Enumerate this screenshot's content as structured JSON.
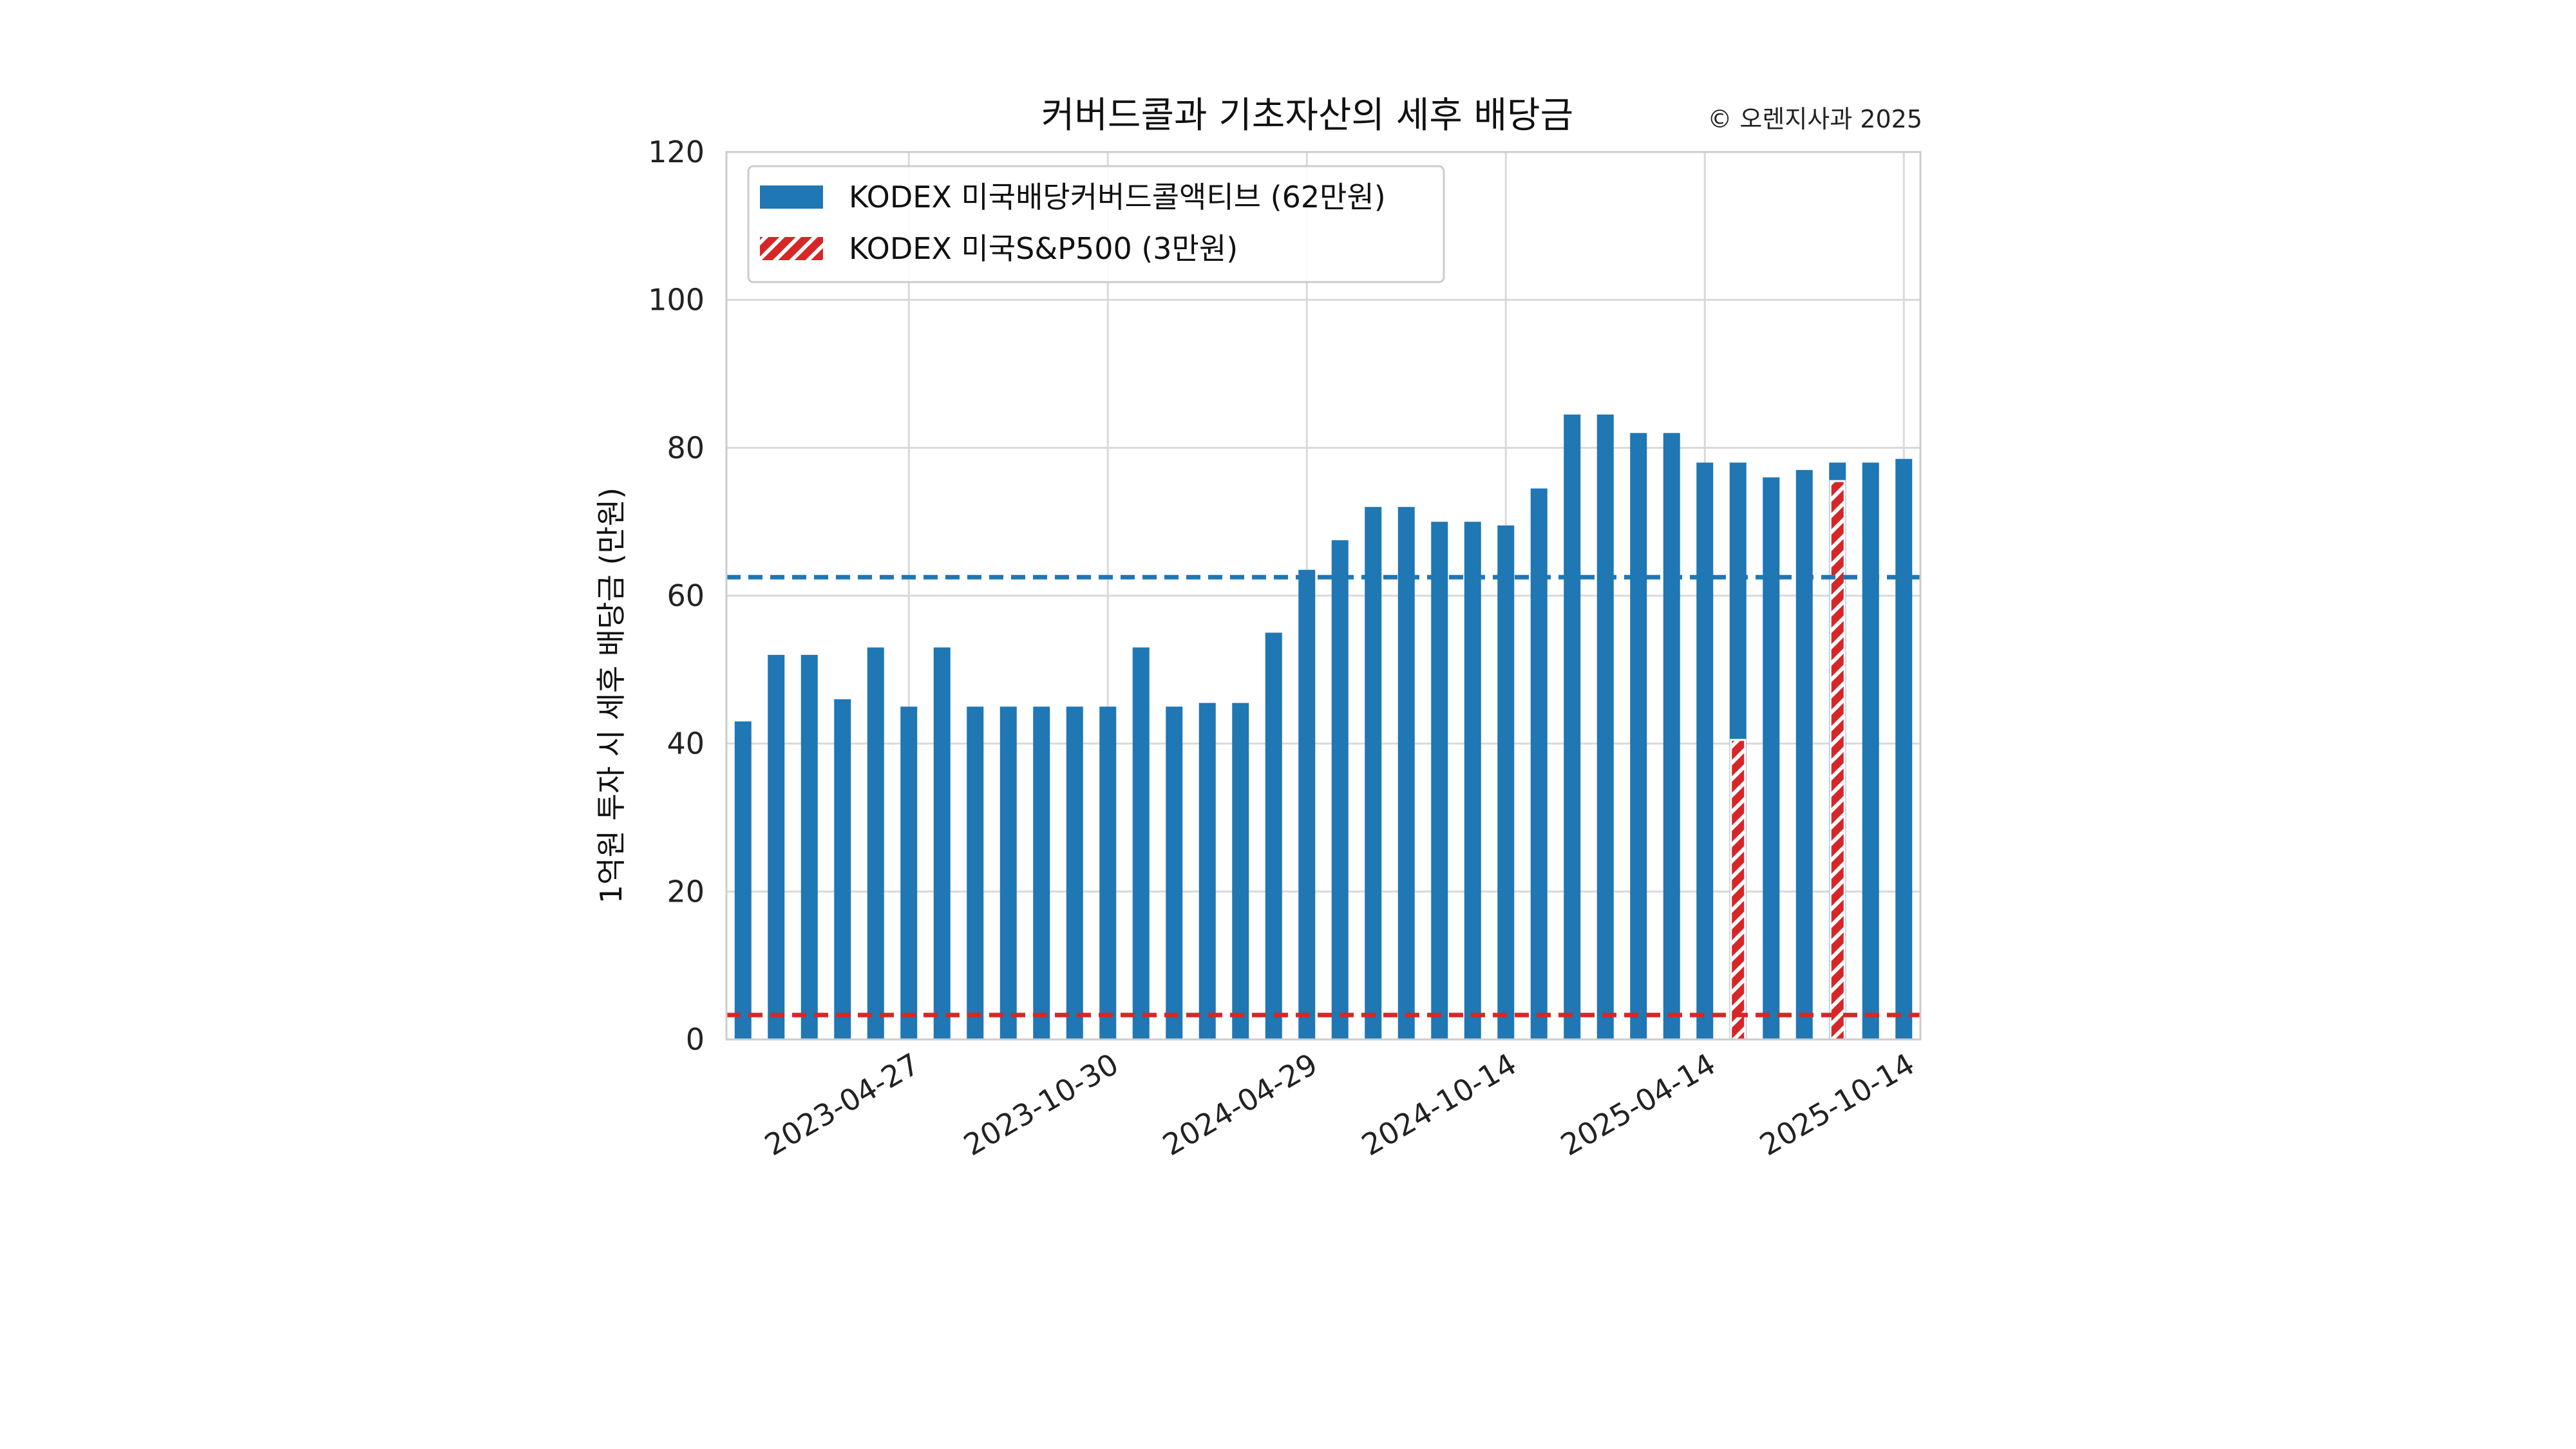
{
  "chart_data": {
    "type": "bar",
    "title": "커버드콜과 기초자산의 세후 배당금",
    "copyright": "© 오렌지사과 2025",
    "ylabel": "1억원 투자 시 세후 배당금 (만원)",
    "xlabel": "",
    "ylim": [
      0,
      120
    ],
    "y_ticks": [
      0,
      20,
      40,
      60,
      80,
      100,
      120
    ],
    "x_tick_labels": [
      "2023-04-27",
      "2023-10-30",
      "2024-04-29",
      "2024-10-14",
      "2025-04-14",
      "2025-10-14"
    ],
    "x_tick_positions": [
      5,
      11,
      17,
      23,
      29,
      35
    ],
    "legend_position": "top-left",
    "grid": true,
    "series": [
      {
        "name": "KODEX 미국배당커버드콜액티브 (62만원)",
        "color": "#1f77b4",
        "style": "solid",
        "average": 62.5,
        "values": [
          43,
          52,
          52,
          46,
          53,
          45,
          53,
          45,
          45,
          45,
          45,
          45,
          53,
          45,
          45.5,
          45.5,
          55,
          63.5,
          67.5,
          72,
          72,
          70,
          70,
          69.5,
          74.5,
          84.5,
          84.5,
          82,
          82,
          78,
          78,
          76,
          77,
          78,
          78,
          78.5
        ]
      },
      {
        "name": "KODEX 미국S&P500 (3만원)",
        "color": "#d62728",
        "style": "hatched",
        "average": 3.3,
        "values": [
          null,
          null,
          null,
          null,
          null,
          null,
          null,
          null,
          null,
          null,
          null,
          null,
          null,
          null,
          null,
          null,
          null,
          null,
          null,
          null,
          null,
          null,
          null,
          null,
          null,
          null,
          null,
          null,
          null,
          null,
          40.5,
          null,
          null,
          75.5,
          null,
          null
        ]
      }
    ]
  }
}
